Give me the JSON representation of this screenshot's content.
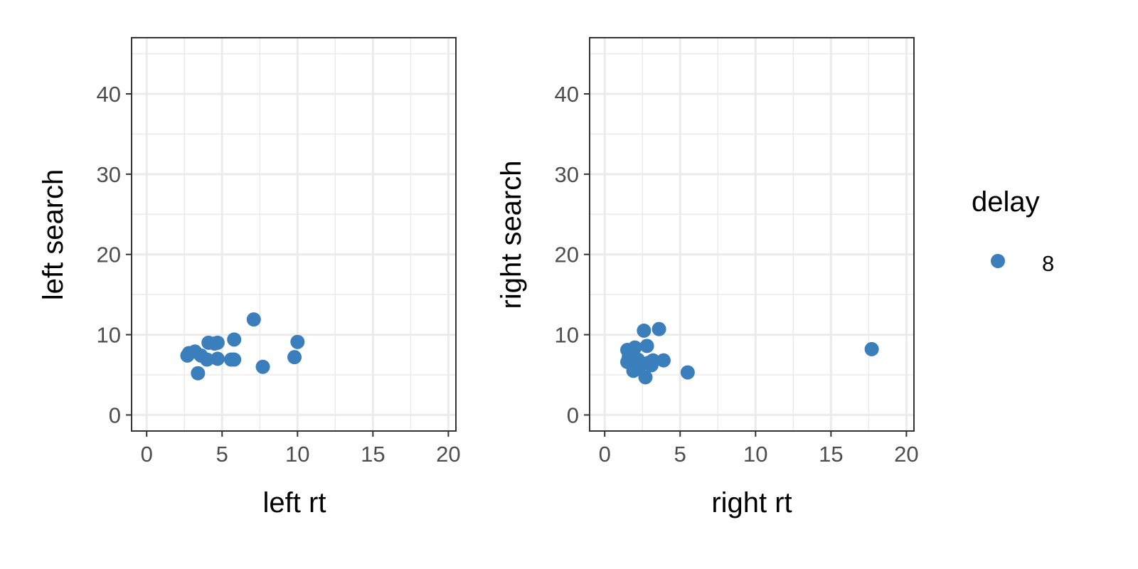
{
  "chart_data": [
    {
      "type": "scatter",
      "xlabel": "left rt",
      "ylabel": "left search",
      "xlim": [
        -1,
        20.5
      ],
      "ylim": [
        -2,
        47
      ],
      "xticks": [
        "0",
        "5",
        "10",
        "15",
        "20"
      ],
      "yticks": [
        "0",
        "10",
        "20",
        "30",
        "40"
      ],
      "grid": true,
      "series": [
        {
          "name": "8",
          "points": [
            [
              2.7,
              7.4
            ],
            [
              2.8,
              7.7
            ],
            [
              3.2,
              7.9
            ],
            [
              3.4,
              5.2
            ],
            [
              3.6,
              7.4
            ],
            [
              4.0,
              6.9
            ],
            [
              4.1,
              9.0
            ],
            [
              4.5,
              8.9
            ],
            [
              4.7,
              9.0
            ],
            [
              4.7,
              7.0
            ],
            [
              5.6,
              6.9
            ],
            [
              5.8,
              6.9
            ],
            [
              5.8,
              9.4
            ],
            [
              7.1,
              11.9
            ],
            [
              7.7,
              6.0
            ],
            [
              9.8,
              7.2
            ],
            [
              10.0,
              9.1
            ]
          ]
        }
      ]
    },
    {
      "type": "scatter",
      "xlabel": "right rt",
      "ylabel": "right search",
      "xlim": [
        -1,
        20.5
      ],
      "ylim": [
        -2,
        47
      ],
      "xticks": [
        "0",
        "5",
        "10",
        "15",
        "20"
      ],
      "yticks": [
        "0",
        "10",
        "20",
        "30",
        "40"
      ],
      "grid": true,
      "series": [
        {
          "name": "8",
          "points": [
            [
              1.5,
              8.1
            ],
            [
              1.5,
              6.6
            ],
            [
              1.6,
              7.3
            ],
            [
              1.8,
              7.7
            ],
            [
              1.9,
              5.5
            ],
            [
              2.0,
              8.4
            ],
            [
              2.0,
              6.5
            ],
            [
              2.2,
              6.9
            ],
            [
              2.3,
              6.0
            ],
            [
              2.6,
              10.5
            ],
            [
              2.7,
              4.7
            ],
            [
              2.8,
              8.6
            ],
            [
              2.9,
              6.5
            ],
            [
              3.2,
              6.8
            ],
            [
              3.1,
              6.2
            ],
            [
              3.6,
              10.7
            ],
            [
              3.9,
              6.8
            ],
            [
              5.5,
              5.3
            ],
            [
              17.7,
              8.2
            ]
          ]
        }
      ]
    }
  ],
  "legend": {
    "title": "delay",
    "items": [
      {
        "label": "8",
        "color": "#3a7ebc"
      }
    ]
  },
  "colors": {
    "point": "#3a7ebc",
    "grid": "#ebebeb",
    "panel_border": "#333333",
    "tick_label": "#4d4d4d"
  }
}
